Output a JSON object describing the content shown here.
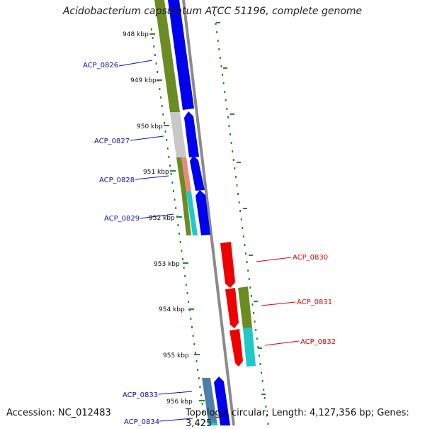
{
  "title": "Acidobacterium capsulatum ATCC 51196, complete genome",
  "footer": {
    "accession": "Accession: NC_012483",
    "summary": "Topology: circular; Length: 4,127,356 bp; Genes: 3,425"
  },
  "colors": {
    "forward_gene": "#0000ee",
    "reverse_gene": "#ee0000",
    "cog_green": "#6b8c23",
    "cog_gray": "#c8c8c8",
    "cog_salmon": "#e88a7a",
    "cog_cyan": "#20c8c8",
    "cog_steel": "#4d7fa8",
    "tick": "#2a8a2a",
    "backbone": "#8a8a8a",
    "forward_label": "#1010b0",
    "reverse_label": "#dd0000"
  },
  "ticks": [
    {
      "label": "948 kbp"
    },
    {
      "label": "949 kbp"
    },
    {
      "label": "950 kbp"
    },
    {
      "label": "951 kbp"
    },
    {
      "label": "952 kbp"
    },
    {
      "label": "953 kbp"
    },
    {
      "label": "954 kbp"
    },
    {
      "label": "955 kbp"
    },
    {
      "label": "956 kbp"
    }
  ],
  "genes": [
    {
      "name": "ACP_0826",
      "strand": "+"
    },
    {
      "name": "ACP_0827",
      "strand": "+"
    },
    {
      "name": "ACP_0828",
      "strand": "+"
    },
    {
      "name": "ACP_0829",
      "strand": "+"
    },
    {
      "name": "ACP_0830",
      "strand": "-"
    },
    {
      "name": "ACP_0831",
      "strand": "-"
    },
    {
      "name": "ACP_0832",
      "strand": "-"
    },
    {
      "name": "ACP_0833",
      "strand": "+"
    },
    {
      "name": "ACP_0834",
      "strand": "+"
    }
  ]
}
